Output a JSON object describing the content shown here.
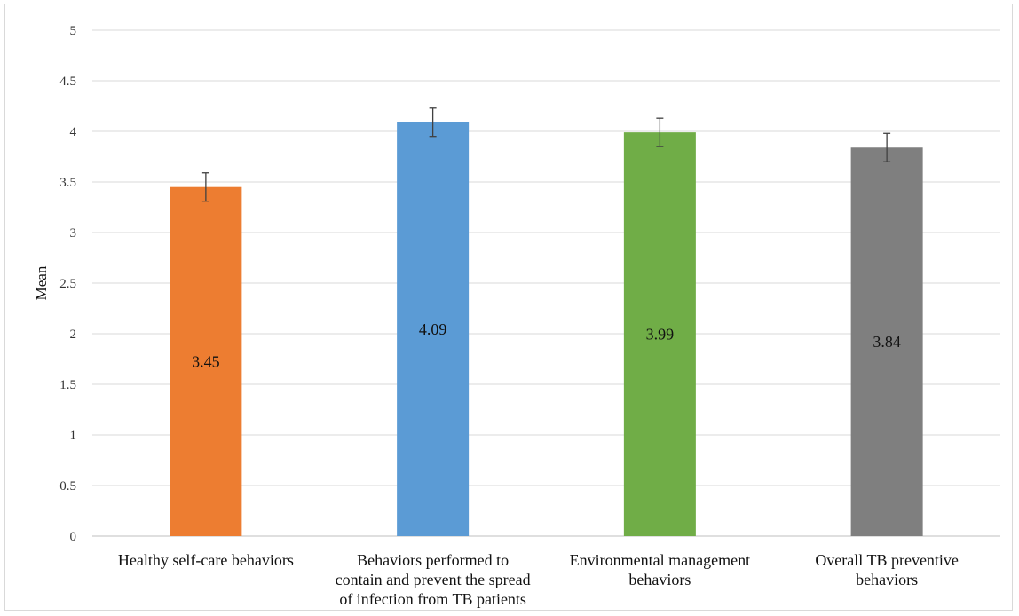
{
  "chart_data": {
    "type": "bar",
    "title": "",
    "xlabel": "",
    "ylabel": "Mean",
    "ylim": [
      0,
      5
    ],
    "yticks": [
      "0",
      "0.5",
      "1",
      "1.5",
      "2",
      "2.5",
      "3",
      "3.5",
      "4",
      "4.5",
      "5"
    ],
    "grid": true,
    "categories": [
      [
        "Healthy self-care behaviors"
      ],
      [
        "Behaviors performed to",
        "contain and prevent the spread",
        "of infection from TB patients"
      ],
      [
        "Environmental management",
        "behaviors"
      ],
      [
        "Overall TB preventive",
        "behaviors"
      ]
    ],
    "values": [
      3.45,
      4.09,
      3.99,
      3.84
    ],
    "data_labels": [
      "3.45",
      "4.09",
      "3.99",
      "3.84"
    ],
    "error_upper": [
      3.59,
      4.23,
      4.13,
      3.98
    ],
    "error_lower": [
      3.31,
      3.95,
      3.85,
      3.7
    ],
    "colors": [
      "#ed7d31",
      "#5b9bd5",
      "#70ad47",
      "#7f7f7f"
    ]
  }
}
